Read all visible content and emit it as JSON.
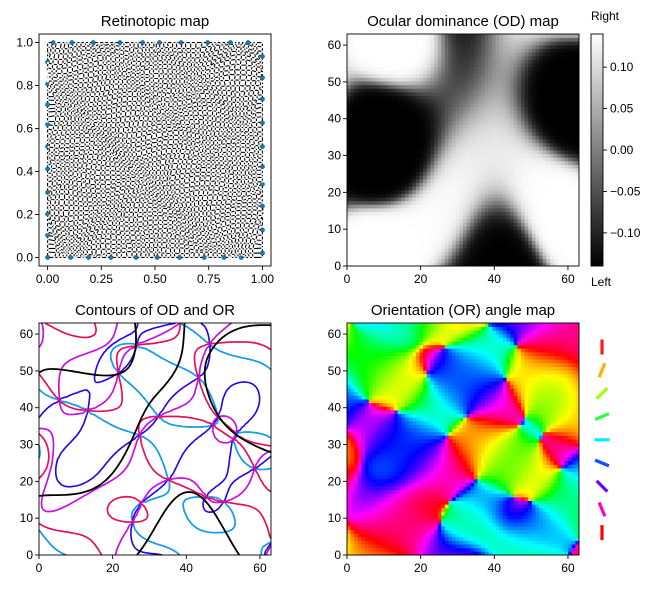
{
  "chart_data": [
    {
      "id": "retinotopic",
      "type": "scatter",
      "title": "Retinotopic map",
      "xlim": [
        -0.04,
        1.04
      ],
      "ylim": [
        -0.04,
        1.04
      ],
      "xticks": [
        0,
        0.25,
        0.5,
        0.75,
        1
      ],
      "xticklabels": [
        "0.00",
        "0.25",
        "0.50",
        "0.75",
        "1.00"
      ],
      "yticks": [
        0,
        0.2,
        0.4,
        0.6,
        0.8,
        1
      ],
      "yticklabels": [
        "0.0",
        "0.2",
        "0.4",
        "0.6",
        "0.8",
        "1.0"
      ],
      "grid_points_per_side": 50,
      "point_color": "#ffffff",
      "edge_color": "#000000",
      "marker_color": "#1f77b4"
    },
    {
      "id": "od-map",
      "type": "heatmap",
      "title": "Ocular dominance (OD) map",
      "xlim": [
        0,
        63
      ],
      "ylim": [
        0,
        63
      ],
      "xticks": [
        0,
        20,
        40,
        60
      ],
      "yticks": [
        0,
        10,
        20,
        30,
        40,
        50,
        60
      ],
      "grid_size": 64,
      "colormap": "gray",
      "colorbar": {
        "range": [
          -0.14,
          0.14
        ],
        "ticks": [
          0.1,
          0.05,
          0,
          -0.05,
          -0.1
        ],
        "ticklabels": [
          "0.10",
          "0.05",
          "0.00",
          "−0.05",
          "−0.10"
        ],
        "top_label": "Right",
        "bottom_label": "Left"
      }
    },
    {
      "id": "contours",
      "type": "line",
      "title": "Contours of OD and OR",
      "xlim": [
        0,
        63
      ],
      "ylim": [
        0,
        63
      ],
      "xticks": [
        0,
        20,
        40,
        60
      ],
      "yticks": [
        0,
        10,
        20,
        30,
        40,
        50,
        60
      ],
      "od_contour_color": "#000000"
    },
    {
      "id": "or-map",
      "type": "heatmap",
      "title": "Orientation (OR) angle map",
      "xlim": [
        0,
        63
      ],
      "ylim": [
        0,
        63
      ],
      "xticks": [
        0,
        20,
        40,
        60
      ],
      "yticks": [
        0,
        10,
        20,
        30,
        40,
        50,
        60
      ],
      "grid_size": 64,
      "colormap": "hsv",
      "legend_orientations_deg": [
        90,
        67.5,
        45,
        22.5,
        0,
        -22.5,
        -45,
        -67.5,
        -90
      ],
      "legend_colors": [
        "#ff1a1a",
        "#ffb000",
        "#a6ff00",
        "#2bff3c",
        "#00f0ff",
        "#0b4fff",
        "#6a00ff",
        "#ff00c8",
        "#ff0000"
      ]
    }
  ]
}
